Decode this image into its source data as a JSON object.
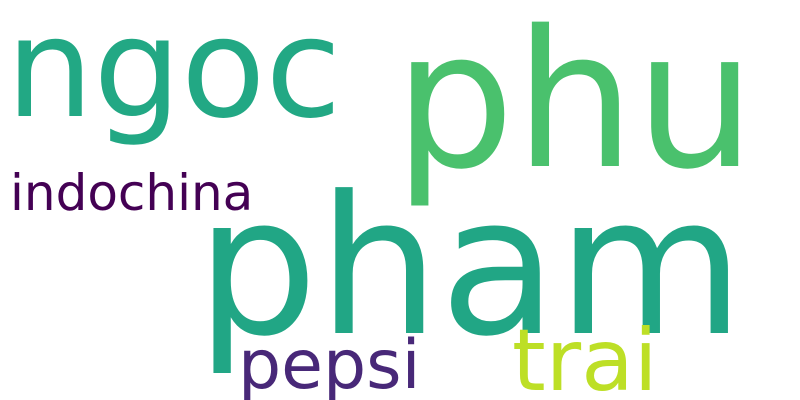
{
  "words": [
    {
      "text": "ngoc",
      "color": "#22a884"
    },
    {
      "text": "phu",
      "color": "#4ac16d"
    },
    {
      "text": "indochina",
      "color": "#440154"
    },
    {
      "text": "pham",
      "color": "#21a685"
    },
    {
      "text": "pepsi",
      "color": "#482878"
    },
    {
      "text": "trai",
      "color": "#bddf26"
    }
  ]
}
